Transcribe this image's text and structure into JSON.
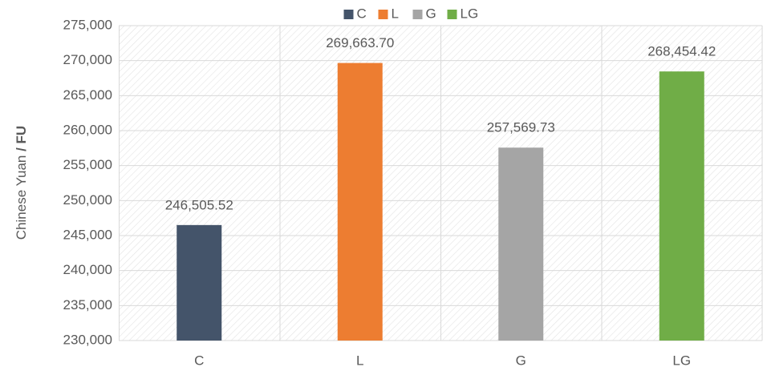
{
  "chart_data": {
    "type": "bar",
    "y_label": "Chinese Yuan",
    "y_label_unit": "/ FU",
    "categories": [
      "C",
      "L",
      "G",
      "LG"
    ],
    "values": [
      246505.52,
      269663.7,
      257569.73,
      268454.42
    ],
    "value_labels": [
      "246,505.52",
      "269,663.70",
      "257,569.73",
      "268,454.42"
    ],
    "colors": [
      "#44546a",
      "#ed7d31",
      "#a5a5a5",
      "#70ad47"
    ],
    "ylim": [
      230000,
      275000
    ],
    "yticks": [
      {
        "value": 230000,
        "label": "230,000"
      },
      {
        "value": 235000,
        "label": "235,000"
      },
      {
        "value": 240000,
        "label": "240,000"
      },
      {
        "value": 245000,
        "label": "245,000"
      },
      {
        "value": 250000,
        "label": "250,000"
      },
      {
        "value": 255000,
        "label": "255,000"
      },
      {
        "value": 260000,
        "label": "260,000"
      },
      {
        "value": 265000,
        "label": "265,000"
      },
      {
        "value": 270000,
        "label": "270,000"
      },
      {
        "value": 275000,
        "label": "275,000"
      }
    ],
    "grid": true,
    "legend": "top"
  }
}
